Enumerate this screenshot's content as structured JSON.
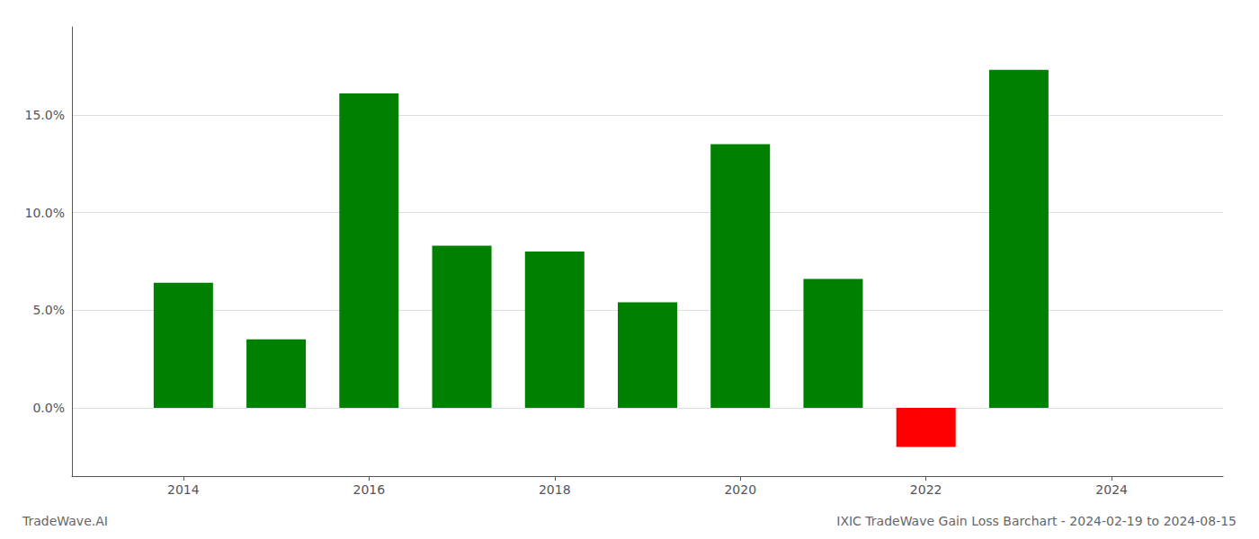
{
  "chart_data": {
    "type": "bar",
    "title": "IXIC TradeWave Gain Loss Barchart - 2024-02-19 to 2024-08-15",
    "annotations": [
      "TradeWave.AI"
    ],
    "x": [
      2014,
      2015,
      2016,
      2017,
      2018,
      2019,
      2020,
      2021,
      2022,
      2023
    ],
    "values": [
      6.4,
      3.5,
      16.1,
      8.3,
      8.0,
      5.4,
      13.5,
      6.6,
      -2.0,
      17.3
    ],
    "colors": [
      "#008000",
      "#008000",
      "#008000",
      "#008000",
      "#008000",
      "#008000",
      "#008000",
      "#008000",
      "#ff0000",
      "#008000"
    ],
    "xlim": [
      2012.8,
      2025.2
    ],
    "xticks": [
      2014,
      2016,
      2018,
      2020,
      2022,
      2024
    ],
    "ylim": [
      -3.5,
      19.5
    ],
    "yticks": [
      {
        "value": 0.0,
        "label": "0.0%"
      },
      {
        "value": 5.0,
        "label": "5.0%"
      },
      {
        "value": 10.0,
        "label": "10.0%"
      },
      {
        "value": 15.0,
        "label": "15.0%"
      }
    ],
    "grid": true
  }
}
